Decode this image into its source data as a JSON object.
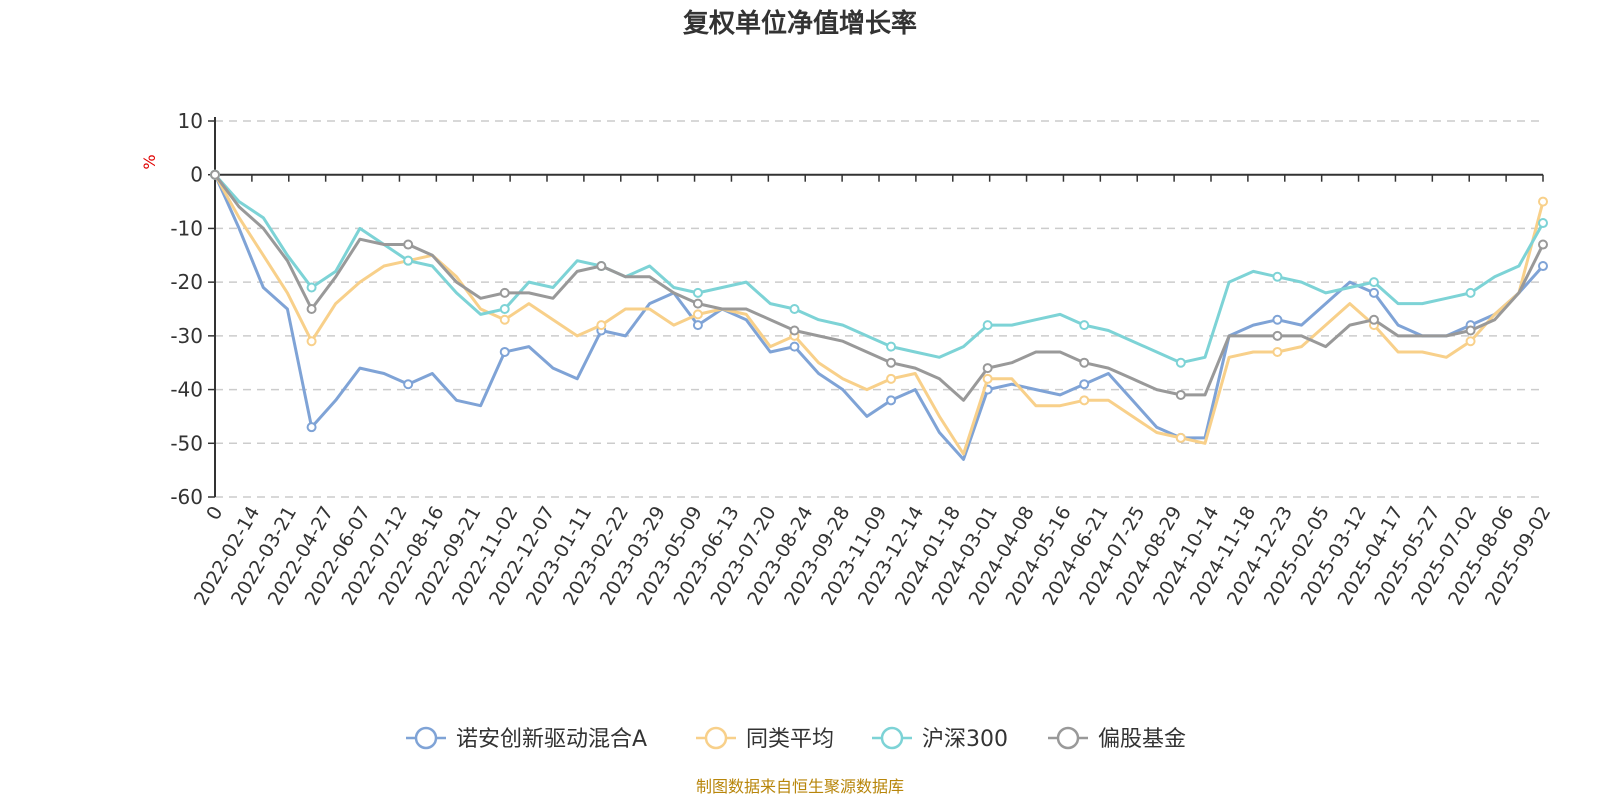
{
  "chart_data": {
    "type": "line",
    "title": "复权单位净值增长率",
    "ylabel": "%",
    "ylim": [
      -60,
      10
    ],
    "yticks": [
      10,
      0,
      -10,
      -20,
      -30,
      -40,
      -50,
      -60
    ],
    "xlabels": [
      "0",
      "2022-02-14",
      "2022-03-21",
      "2022-04-27",
      "2022-06-07",
      "2022-07-12",
      "2022-08-16",
      "2022-09-21",
      "2022-11-02",
      "2022-12-07",
      "2023-01-11",
      "2023-02-22",
      "2023-03-29",
      "2023-05-09",
      "2023-06-13",
      "2023-07-20",
      "2023-08-24",
      "2023-09-28",
      "2023-11-09",
      "2023-12-14",
      "2024-01-18",
      "2024-03-01",
      "2024-04-08",
      "2024-05-16",
      "2024-06-21",
      "2024-07-25",
      "2024-08-29",
      "2024-10-14",
      "2024-11-18",
      "2024-12-23",
      "2025-02-05",
      "2025-03-12",
      "2025-04-17",
      "2025-05-27",
      "2025-07-02",
      "2025-08-06",
      "2025-09-02"
    ],
    "grid": true,
    "legend_position": "bottom",
    "series": [
      {
        "name": "诺安创新驱动混合A",
        "color": "#7fa3d6",
        "values": [
          0,
          -10,
          -21,
          -25,
          -47,
          -42,
          -36,
          -37,
          -39,
          -37,
          -42,
          -43,
          -33,
          -32,
          -36,
          -38,
          -29,
          -30,
          -24,
          -22,
          -28,
          -25,
          -27,
          -33,
          -32,
          -37,
          -40,
          -45,
          -42,
          -40,
          -48,
          -53,
          -40,
          -39,
          -40,
          -41,
          -39,
          -37,
          -42,
          -47,
          -49,
          -49,
          -30,
          -28,
          -27,
          -28,
          -24,
          -20,
          -22,
          -28,
          -30,
          -30,
          -28,
          -26,
          -22,
          -17
        ]
      },
      {
        "name": "同类平均",
        "color": "#f8d08a",
        "values": [
          0,
          -8,
          -15,
          -22,
          -31,
          -24,
          -20,
          -17,
          -16,
          -15,
          -19,
          -25,
          -27,
          -24,
          -27,
          -30,
          -28,
          -25,
          -25,
          -28,
          -26,
          -25,
          -26,
          -32,
          -30,
          -35,
          -38,
          -40,
          -38,
          -37,
          -45,
          -52,
          -38,
          -38,
          -43,
          -43,
          -42,
          -42,
          -45,
          -48,
          -49,
          -50,
          -34,
          -33,
          -33,
          -32,
          -28,
          -24,
          -28,
          -33,
          -33,
          -34,
          -31,
          -26,
          -22,
          -5
        ]
      },
      {
        "name": "沪深300",
        "color": "#7dd3d6",
        "values": [
          0,
          -5,
          -8,
          -15,
          -21,
          -18,
          -10,
          -13,
          -16,
          -17,
          -22,
          -26,
          -25,
          -20,
          -21,
          -16,
          -17,
          -19,
          -17,
          -21,
          -22,
          -21,
          -20,
          -24,
          -25,
          -27,
          -28,
          -30,
          -32,
          -33,
          -34,
          -32,
          -28,
          -28,
          -27,
          -26,
          -28,
          -29,
          -31,
          -33,
          -35,
          -34,
          -20,
          -18,
          -19,
          -20,
          -22,
          -21,
          -20,
          -24,
          -24,
          -23,
          -22,
          -19,
          -17,
          -9
        ]
      },
      {
        "name": "偏股基金",
        "color": "#999999",
        "values": [
          0,
          -6,
          -10,
          -16,
          -25,
          -19,
          -12,
          -13,
          -13,
          -15,
          -20,
          -23,
          -22,
          -22,
          -23,
          -18,
          -17,
          -19,
          -19,
          -22,
          -24,
          -25,
          -25,
          -27,
          -29,
          -30,
          -31,
          -33,
          -35,
          -36,
          -38,
          -42,
          -36,
          -35,
          -33,
          -33,
          -35,
          -36,
          -38,
          -40,
          -41,
          -41,
          -30,
          -30,
          -30,
          -30,
          -32,
          -28,
          -27,
          -30,
          -30,
          -30,
          -29,
          -27,
          -22,
          -13
        ]
      }
    ]
  },
  "source": "制图数据来自恒生聚源数据库"
}
